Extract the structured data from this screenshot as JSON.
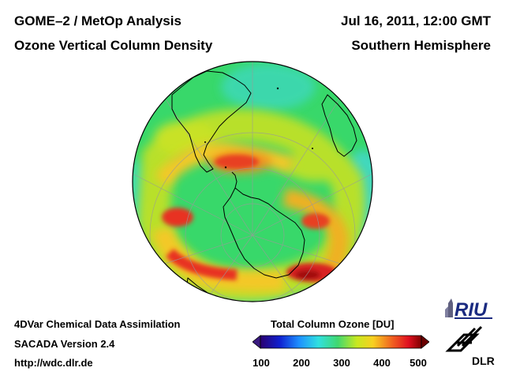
{
  "header": {
    "line1_left": "GOME–2 / MetOp Analysis",
    "line2_left": "Ozone Vertical Column Density",
    "line1_right": "Jul 16, 2011, 12:00 GMT",
    "line2_right": "Southern Hemisphere"
  },
  "footer": {
    "line1": "4DVar Chemical Data Assimilation",
    "line2": "SACADA Version 2.4",
    "line3": "http://wdc.dlr.de"
  },
  "colorbar": {
    "title": "Total Column Ozone [DU]",
    "ticks": [
      "100",
      "200",
      "300",
      "400",
      "500"
    ],
    "range": [
      100,
      500
    ],
    "colors": [
      "#2a0070",
      "#1020d0",
      "#1e90ff",
      "#30e0e0",
      "#40d870",
      "#c8e820",
      "#f8d020",
      "#f06020",
      "#e01020",
      "#800000"
    ]
  },
  "map": {
    "projection": "orthographic",
    "center": "south-pole",
    "ozone_hole": false,
    "features": [
      "antarctica",
      "south-america",
      "africa",
      "australia"
    ]
  },
  "logos": {
    "riu": "RIU",
    "dlr": "DLR"
  }
}
